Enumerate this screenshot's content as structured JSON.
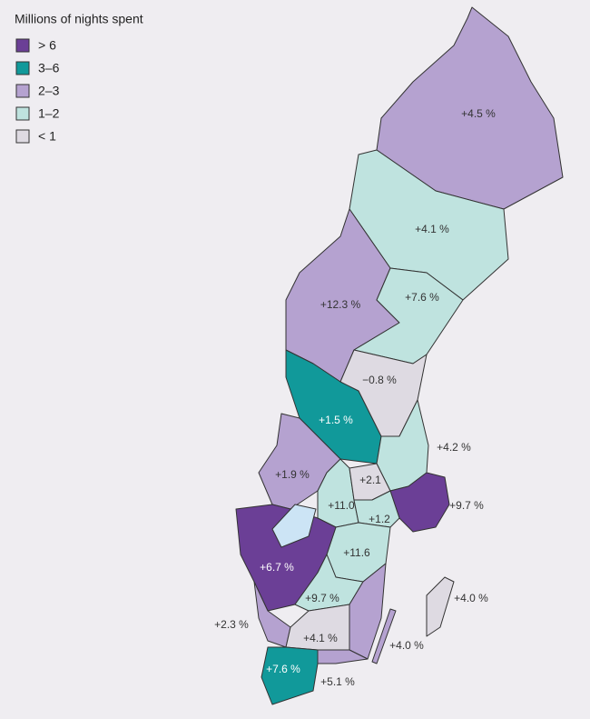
{
  "legend": {
    "title": "Millions of nights spent",
    "items": [
      {
        "label": "> 6",
        "color": "#6b3f96"
      },
      {
        "label": "3–6",
        "color": "#11999a"
      },
      {
        "label": "2–3",
        "color": "#b5a2d0"
      },
      {
        "label": "1–2",
        "color": "#bfe3df"
      },
      {
        "label": "< 1",
        "color": "#dedae2"
      }
    ]
  },
  "regions": [
    {
      "label": "+4.5 %",
      "color": "#b5a2d0"
    },
    {
      "label": "+4.1 %",
      "color": "#bfe3df"
    },
    {
      "label": "+12.3 %",
      "color": "#b5a2d0"
    },
    {
      "label": "+7.6 %",
      "color": "#bfe3df"
    },
    {
      "label": "+1.5 %",
      "color": "#11999a"
    },
    {
      "label": "−0.8 %",
      "color": "#dedae2"
    },
    {
      "label": "+4.2 %",
      "color": "#bfe3df"
    },
    {
      "label": "+1.9 %",
      "color": "#b5a2d0"
    },
    {
      "label": "+11.0",
      "color": "#bfe3df"
    },
    {
      "label": "+2.1",
      "color": "#dedae2"
    },
    {
      "label": "+9.7 %",
      "color": "#6b3f96"
    },
    {
      "label": "+1.2",
      "color": "#bfe3df"
    },
    {
      "label": "+11.6",
      "color": "#bfe3df"
    },
    {
      "label": "+6.7 %",
      "color": "#6b3f96"
    },
    {
      "label": "+9.7 %",
      "color": "#bfe3df"
    },
    {
      "label": "+4.0 %",
      "color": "#b5a2d0"
    },
    {
      "label": "+4.0 %",
      "color": "#dedae2"
    },
    {
      "label": "+2.3 %",
      "color": "#b5a2d0"
    },
    {
      "label": "+4.1 %",
      "color": "#dedae2"
    },
    {
      "label": "+5.1 %",
      "color": "#b5a2d0"
    },
    {
      "label": "+7.6 %",
      "color": "#11999a"
    }
  ]
}
